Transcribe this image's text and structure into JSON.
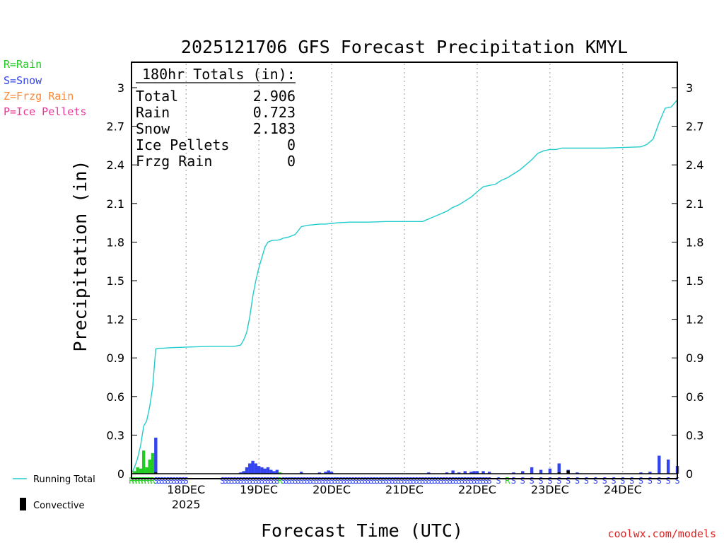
{
  "chart_data": {
    "type": "bar+line",
    "title": "2025121706 GFS Forecast Precipitation KMYL",
    "ylabel": "Precipitation (in)",
    "xlabel": "Forecast Time (UTC)",
    "ylim": [
      0,
      3.2
    ],
    "yticks": [
      "0",
      "0.3",
      "0.6",
      "0.9",
      "1.2",
      "1.5",
      "1.8",
      "2.1",
      "2.4",
      "2.7",
      "3"
    ],
    "xlim_hours": [
      0,
      180
    ],
    "xticks": [
      {
        "hour": 18,
        "label": "18DEC",
        "sublabel": "2025"
      },
      {
        "hour": 42,
        "label": "19DEC",
        "sublabel": ""
      },
      {
        "hour": 66,
        "label": "20DEC",
        "sublabel": ""
      },
      {
        "hour": 90,
        "label": "21DEC",
        "sublabel": ""
      },
      {
        "hour": 114,
        "label": "22DEC",
        "sublabel": ""
      },
      {
        "hour": 138,
        "label": "23DEC",
        "sublabel": ""
      },
      {
        "hour": 162,
        "label": "24DEC",
        "sublabel": ""
      }
    ],
    "legend": {
      "rain": "R=Rain",
      "snow": "S=Snow",
      "frzg": "Z=Frzg Rain",
      "ice": "P=Ice Pellets",
      "running_total": "Running Total",
      "convective": "Convective"
    },
    "totals": {
      "header": "180hr Totals (in):",
      "rows": [
        {
          "label": "Total",
          "value": "2.906"
        },
        {
          "label": "Rain",
          "value": "0.723"
        },
        {
          "label": "Snow",
          "value": "2.183"
        },
        {
          "label": "Ice Pellets",
          "value": "0"
        },
        {
          "label": "Frzg Rain",
          "value": "0"
        }
      ]
    },
    "colors": {
      "rain": "#22cc22",
      "snow": "#3344ee",
      "frzg": "#ff8833",
      "ice": "#ee3399",
      "running_total": "#22cccc",
      "convective": "#000000",
      "url": "#dd2222"
    },
    "running_total": {
      "hours": [
        0,
        1,
        2,
        3,
        4,
        5,
        6,
        7,
        8,
        9,
        10,
        14,
        20,
        26,
        30,
        34,
        36,
        37,
        38,
        39,
        40,
        41,
        42,
        43,
        44,
        45,
        46,
        47,
        48,
        49,
        50,
        52,
        54,
        56,
        58,
        60,
        62,
        64,
        66,
        68,
        72,
        78,
        84,
        90,
        96,
        98,
        100,
        102,
        104,
        106,
        108,
        110,
        112,
        114,
        116,
        118,
        120,
        122,
        124,
        126,
        128,
        130,
        132,
        134,
        136,
        138,
        140,
        142,
        144,
        150,
        156,
        162,
        168,
        170,
        172,
        174,
        176,
        178,
        180
      ],
      "values": [
        0.0,
        0.05,
        0.12,
        0.22,
        0.37,
        0.41,
        0.52,
        0.68,
        0.97,
        0.975,
        0.975,
        0.98,
        0.985,
        0.99,
        0.99,
        0.99,
        1.0,
        1.04,
        1.1,
        1.22,
        1.38,
        1.5,
        1.6,
        1.68,
        1.76,
        1.8,
        1.81,
        1.815,
        1.815,
        1.82,
        1.83,
        1.84,
        1.86,
        1.92,
        1.93,
        1.935,
        1.94,
        1.94,
        1.945,
        1.95,
        1.955,
        1.955,
        1.96,
        1.96,
        1.96,
        1.98,
        2.0,
        2.02,
        2.04,
        2.07,
        2.09,
        2.12,
        2.15,
        2.19,
        2.23,
        2.24,
        2.25,
        2.28,
        2.3,
        2.33,
        2.36,
        2.4,
        2.44,
        2.49,
        2.51,
        2.52,
        2.52,
        2.53,
        2.53,
        2.53,
        2.53,
        2.535,
        2.54,
        2.56,
        2.6,
        2.73,
        2.84,
        2.85,
        2.906
      ]
    },
    "bars": [
      {
        "hour": 1,
        "value": 0.02,
        "type": "rain"
      },
      {
        "hour": 2,
        "value": 0.05,
        "type": "rain"
      },
      {
        "hour": 3,
        "value": 0.04,
        "type": "rain"
      },
      {
        "hour": 4,
        "value": 0.18,
        "type": "rain"
      },
      {
        "hour": 5,
        "value": 0.05,
        "type": "rain"
      },
      {
        "hour": 6,
        "value": 0.11,
        "type": "rain"
      },
      {
        "hour": 7,
        "value": 0.16,
        "type": "rain"
      },
      {
        "hour": 8,
        "value": 0.28,
        "type": "snow"
      },
      {
        "hour": 36,
        "value": 0.01,
        "type": "snow"
      },
      {
        "hour": 37,
        "value": 0.02,
        "type": "snow"
      },
      {
        "hour": 38,
        "value": 0.05,
        "type": "snow"
      },
      {
        "hour": 39,
        "value": 0.08,
        "type": "snow"
      },
      {
        "hour": 40,
        "value": 0.1,
        "type": "snow"
      },
      {
        "hour": 41,
        "value": 0.08,
        "type": "snow"
      },
      {
        "hour": 42,
        "value": 0.06,
        "type": "snow"
      },
      {
        "hour": 43,
        "value": 0.05,
        "type": "snow"
      },
      {
        "hour": 44,
        "value": 0.04,
        "type": "snow"
      },
      {
        "hour": 45,
        "value": 0.05,
        "type": "snow"
      },
      {
        "hour": 46,
        "value": 0.03,
        "type": "snow"
      },
      {
        "hour": 47,
        "value": 0.02,
        "type": "snow"
      },
      {
        "hour": 48,
        "value": 0.03,
        "type": "snow"
      },
      {
        "hour": 49,
        "value": 0.01,
        "type": "rain"
      },
      {
        "hour": 56,
        "value": 0.015,
        "type": "snow"
      },
      {
        "hour": 62,
        "value": 0.01,
        "type": "snow"
      },
      {
        "hour": 64,
        "value": 0.015,
        "type": "snow"
      },
      {
        "hour": 65,
        "value": 0.025,
        "type": "snow"
      },
      {
        "hour": 66,
        "value": 0.015,
        "type": "snow"
      },
      {
        "hour": 98,
        "value": 0.01,
        "type": "snow"
      },
      {
        "hour": 104,
        "value": 0.01,
        "type": "snow"
      },
      {
        "hour": 106,
        "value": 0.025,
        "type": "snow"
      },
      {
        "hour": 108,
        "value": 0.01,
        "type": "snow"
      },
      {
        "hour": 110,
        "value": 0.02,
        "type": "snow"
      },
      {
        "hour": 112,
        "value": 0.015,
        "type": "snow"
      },
      {
        "hour": 113,
        "value": 0.02,
        "type": "snow"
      },
      {
        "hour": 114,
        "value": 0.02,
        "type": "snow"
      },
      {
        "hour": 116,
        "value": 0.02,
        "type": "snow"
      },
      {
        "hour": 118,
        "value": 0.015,
        "type": "snow"
      },
      {
        "hour": 126,
        "value": 0.01,
        "type": "snow"
      },
      {
        "hour": 129,
        "value": 0.02,
        "type": "snow"
      },
      {
        "hour": 132,
        "value": 0.05,
        "type": "snow"
      },
      {
        "hour": 135,
        "value": 0.03,
        "type": "snow"
      },
      {
        "hour": 138,
        "value": 0.04,
        "type": "snow"
      },
      {
        "hour": 141,
        "value": 0.08,
        "type": "snow"
      },
      {
        "hour": 144,
        "value": 0.03,
        "type": "snow"
      },
      {
        "hour": 147,
        "value": 0.01,
        "type": "snow"
      },
      {
        "hour": 168,
        "value": 0.01,
        "type": "snow"
      },
      {
        "hour": 171,
        "value": 0.015,
        "type": "snow"
      },
      {
        "hour": 174,
        "value": 0.14,
        "type": "snow"
      },
      {
        "hour": 177,
        "value": 0.11,
        "type": "snow"
      },
      {
        "hour": 180,
        "value": 0.06,
        "type": "snow"
      }
    ],
    "convective": [
      {
        "hour": 8,
        "value": 0.01
      },
      {
        "hour": 141,
        "value": 0.01
      },
      {
        "hour": 144,
        "value": 0.025
      }
    ],
    "ptype_markers": {
      "rain_hours": [
        0,
        1,
        2,
        3,
        4,
        5,
        6,
        7,
        49,
        124
      ],
      "snow_hours": [
        8,
        9,
        10,
        11,
        12,
        13,
        14,
        15,
        16,
        17,
        18,
        30,
        31,
        32,
        33,
        34,
        35,
        36,
        37,
        38,
        39,
        40,
        41,
        42,
        43,
        44,
        45,
        46,
        47,
        48,
        50,
        51,
        52,
        53,
        54,
        55,
        56,
        57,
        58,
        59,
        60,
        61,
        62,
        63,
        64,
        65,
        66,
        67,
        68,
        69,
        70,
        71,
        72,
        73,
        74,
        75,
        76,
        77,
        78,
        79,
        80,
        81,
        82,
        83,
        84,
        85,
        86,
        87,
        88,
        89,
        90,
        91,
        92,
        93,
        94,
        95,
        96,
        97,
        98,
        99,
        100,
        101,
        102,
        103,
        104,
        105,
        106,
        107,
        108,
        109,
        110,
        111,
        112,
        113,
        114,
        115,
        116,
        117,
        118,
        121,
        126,
        129,
        132,
        135,
        138,
        141,
        144,
        147,
        150,
        153,
        156,
        159,
        162,
        165,
        168,
        171,
        174,
        177,
        180
      ]
    },
    "ptype_letters": {
      "rain": "R",
      "snow": "S"
    },
    "source_url": "coolwx.com/models"
  }
}
